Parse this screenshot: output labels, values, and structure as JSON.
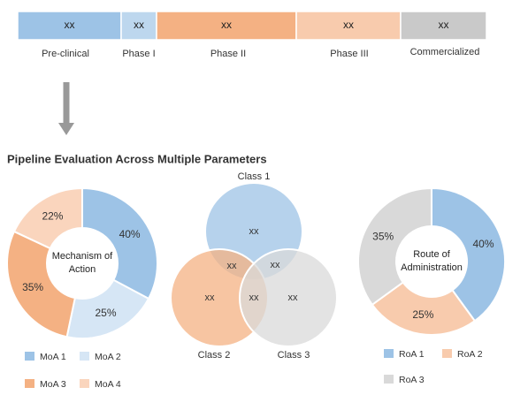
{
  "pipeline": {
    "stages": [
      {
        "label": "Pre-clinical",
        "value": "xx",
        "color": "#9dc3e6"
      },
      {
        "label": "Phase I",
        "value": "xx",
        "color": "#bdd7ee"
      },
      {
        "label": "Phase II",
        "value": "xx",
        "color": "#f4b183"
      },
      {
        "label": "Phase III",
        "value": "xx",
        "color": "#f8cbad"
      },
      {
        "label": "Commercialized",
        "value": "xx",
        "color": "#c9c9c9"
      }
    ]
  },
  "title": "Pipeline Evaluation Across Multiple Parameters",
  "chart_data": [
    {
      "type": "donut",
      "center_label": "Mechanism of Action",
      "categories": [
        "MoA 1",
        "MoA 2",
        "MoA 3",
        "MoA 4"
      ],
      "values": [
        40,
        25,
        35,
        22
      ],
      "value_labels": [
        "40%",
        "25%",
        "35%",
        "22%"
      ],
      "colors": [
        "#9dc3e6",
        "#d6e6f5",
        "#f4b183",
        "#fad5bd"
      ]
    },
    {
      "type": "donut",
      "center_label": "Route of Administration",
      "categories": [
        "RoA 1",
        "RoA 2",
        "RoA 3"
      ],
      "values": [
        40,
        25,
        35
      ],
      "value_labels": [
        "40%",
        "25%",
        "35%"
      ],
      "colors": [
        "#9dc3e6",
        "#f8cbad",
        "#d9d9d9"
      ]
    }
  ],
  "venn": {
    "sets": [
      {
        "label": "Class 1",
        "value": "xx",
        "color": "#9dc3e6"
      },
      {
        "label": "Class 2",
        "value": "xx",
        "color": "#f4b183"
      },
      {
        "label": "Class 3",
        "value": "xx",
        "color": "#d9d9d9"
      }
    ],
    "overlaps": [
      "xx",
      "xx",
      "xx"
    ]
  }
}
